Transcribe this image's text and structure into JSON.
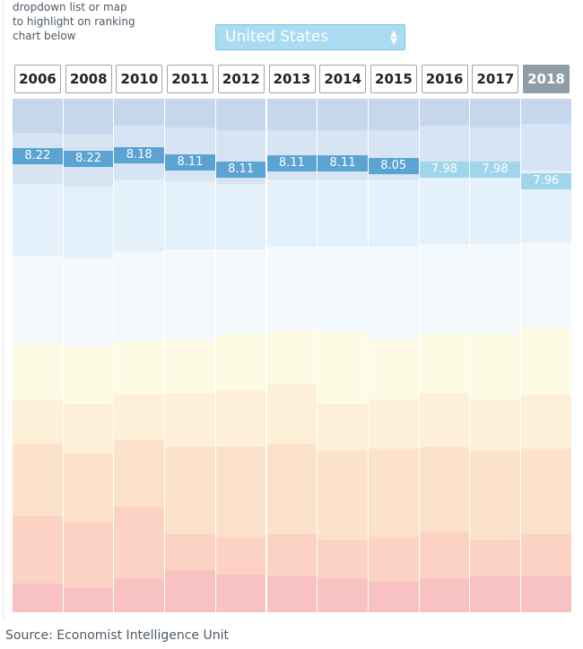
{
  "intro": [
    "dropdown list or map",
    "to highlight on ranking",
    "chart below"
  ],
  "dropdown": "United States",
  "years": [
    "2006",
    "2008",
    "2010",
    "2011",
    "2012",
    "2013",
    "2014",
    "2015",
    "2016",
    "2017",
    "2018"
  ],
  "scores": [
    8.22,
    8.22,
    8.18,
    8.11,
    8.11,
    8.11,
    8.11,
    8.05,
    7.98,
    7.98,
    7.96
  ],
  "source": "Source: Economist Intelligence Unit"
}
